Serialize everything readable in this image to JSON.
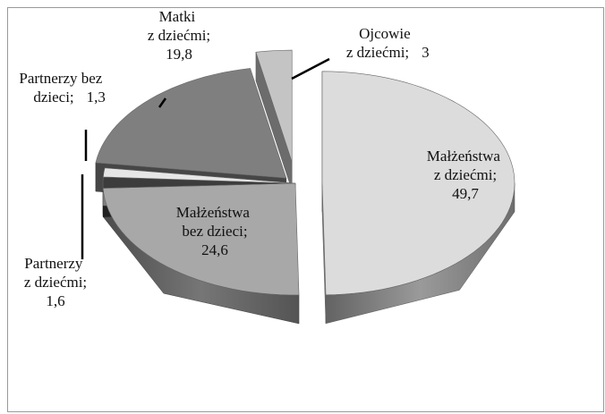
{
  "chart_data": {
    "type": "pie3d",
    "categories": [
      "Małżeństwa z dziećmi;",
      "Małżeństwa bez dzieci;",
      "Partnerzy z dziećmi;",
      "Partnerzy bez dzieci;",
      "Matki z dziećmi;",
      "Ojcowie z dziećmi;"
    ],
    "values": [
      49.7,
      24.6,
      1.6,
      1.3,
      19.8,
      3
    ],
    "value_labels": [
      "49,7",
      "24,6",
      "1,6",
      "1,3",
      "19,8",
      "3"
    ],
    "colors": [
      "#dcdcdc",
      "#a8a8a8",
      "#3c3c3c",
      "#e6e6e6",
      "#7f7f7f",
      "#c4c4c4"
    ]
  }
}
